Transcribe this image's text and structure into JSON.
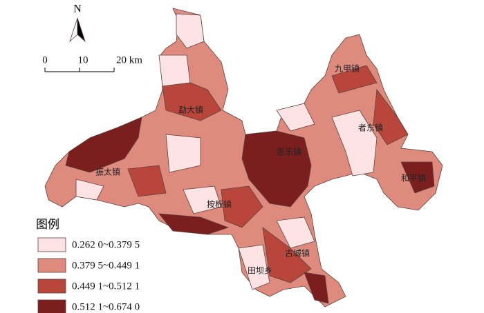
{
  "north_arrow": "N",
  "scale_bar": {
    "labels": [
      "0",
      "10",
      "20 km"
    ]
  },
  "towns": [
    "九甲镇",
    "勐大镇",
    "者东镇",
    "恩乐镇",
    "振太镇",
    "和平镇",
    "按板镇",
    "古城镇",
    "田坝乡"
  ],
  "legend": {
    "title": "图例",
    "items": [
      {
        "label": "0.262 0~0.379 5",
        "color": "#fde3e4"
      },
      {
        "label": "0.379 5~0.449 1",
        "color": "#de8b7d"
      },
      {
        "label": "0.449 1~0.512 1",
        "color": "#b9463a"
      },
      {
        "label": "0.512 1~0.674 0",
        "color": "#7b1e1e"
      }
    ]
  }
}
